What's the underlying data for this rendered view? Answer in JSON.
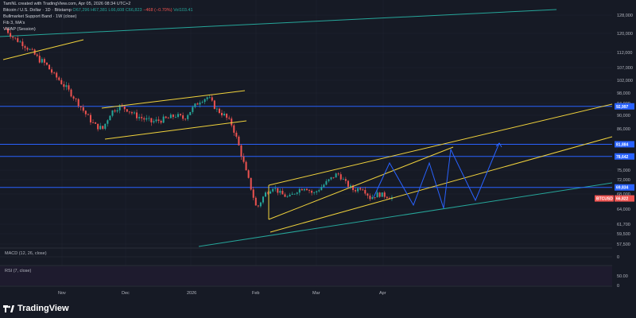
{
  "header": {
    "created_line": "TamNL created with TradingView.com, Apr 05, 2026 08:34 UTC+2",
    "symbol_line": "Bitcoin / U.S. Dollar · 1D · Bitstamp",
    "ohlc": {
      "open": "O67,296",
      "high": "H67,381",
      "low": "L66,608",
      "close": "C66,823",
      "change": "−468 (−0.70%)",
      "vol": "Vol103.41"
    },
    "indicator_1": "Bullmarket Support Band · 1W (close)",
    "indicator_2": "Fib 3, MA's",
    "indicator_3": "VWAP (Session)"
  },
  "macd_title": "MACD (12, 26, close)",
  "rsi_title": "RSI (7, close)",
  "logo_text": "TradingView",
  "colors": {
    "background": "#161a25",
    "up": "#26a69a",
    "down": "#ef5350",
    "channel": "#f0d23c",
    "support_line": "#26a69a",
    "horizontal": "#2962ff",
    "projection": "#2962ff"
  },
  "chart_data": {
    "type": "candlestick",
    "price_axis": {
      "ticks": [
        "128,000",
        "120,000",
        "112,000",
        "107,000",
        "102,000",
        "98,000",
        "94,000",
        "90,000",
        "86,000",
        "75,000",
        "72,000",
        "68,000",
        "64,000",
        "61,700",
        "59,500",
        "57,500"
      ],
      "macd_zero": "0",
      "rsi_levels": [
        "50.00",
        "0"
      ]
    },
    "time_axis": [
      "Nov",
      "Dec",
      "2026",
      "Feb",
      "Mar",
      "Apr"
    ],
    "price_tags": [
      {
        "label": "92,997",
        "price": 92997,
        "color": "#2962ff"
      },
      {
        "label": "81,884",
        "price": 81884,
        "color": "#2962ff"
      },
      {
        "label": "78,642",
        "price": 78642,
        "color": "#2962ff"
      },
      {
        "label": "69,834",
        "price": 69834,
        "color": "#2962ff"
      },
      {
        "label": "66,822",
        "price": 66822,
        "color": "#ef5350",
        "symbol": "BTCUSD"
      }
    ],
    "horizontal_levels": [
      92997,
      81884,
      78642,
      69834
    ],
    "current_price": 66822,
    "series": [
      {
        "name": "BTCUSD",
        "approx_path": [
          [
            0,
            122000
          ],
          [
            5,
            118000
          ],
          [
            10,
            116000
          ],
          [
            15,
            113000
          ],
          [
            20,
            110000
          ],
          [
            25,
            108000
          ],
          [
            30,
            104000
          ],
          [
            35,
            101000
          ],
          [
            40,
            98000
          ],
          [
            45,
            94000
          ],
          [
            50,
            90000
          ],
          [
            55,
            87000
          ],
          [
            60,
            86000
          ],
          [
            65,
            91000
          ],
          [
            70,
            93000
          ],
          [
            75,
            92000
          ],
          [
            80,
            90000
          ],
          [
            85,
            89000
          ],
          [
            90,
            88000
          ],
          [
            95,
            88500
          ],
          [
            100,
            89000
          ],
          [
            105,
            90000
          ],
          [
            110,
            89000
          ],
          [
            115,
            92000
          ],
          [
            120,
            95000
          ],
          [
            125,
            96500
          ],
          [
            130,
            92000
          ],
          [
            135,
            90000
          ],
          [
            140,
            87000
          ],
          [
            145,
            80000
          ],
          [
            150,
            72000
          ],
          [
            155,
            64000
          ],
          [
            160,
            68000
          ],
          [
            165,
            70000
          ],
          [
            170,
            68000
          ],
          [
            175,
            67000
          ],
          [
            180,
            69000
          ],
          [
            185,
            70000
          ],
          [
            190,
            68000
          ],
          [
            195,
            70000
          ],
          [
            200,
            72000
          ],
          [
            205,
            74000
          ],
          [
            210,
            71000
          ],
          [
            215,
            69000
          ],
          [
            220,
            70000
          ],
          [
            225,
            67000
          ],
          [
            230,
            68000
          ],
          [
            235,
            67500
          ],
          [
            240,
            66822
          ]
        ]
      }
    ]
  }
}
